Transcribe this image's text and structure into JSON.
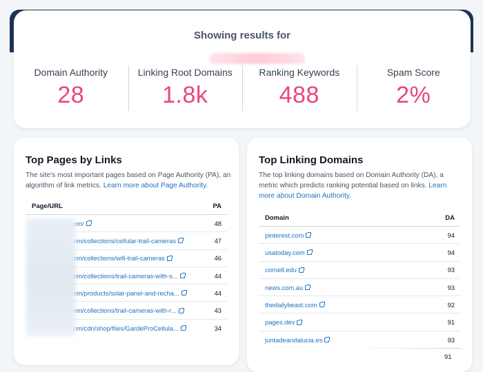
{
  "summary": {
    "title": "Showing results for",
    "metrics": [
      {
        "label": "Domain Authority",
        "value": "28"
      },
      {
        "label": "Linking Root Domains",
        "value": "1.8k"
      },
      {
        "label": "Ranking Keywords",
        "value": "488"
      },
      {
        "label": "Spam Score",
        "value": "2%"
      }
    ]
  },
  "top_pages": {
    "title": "Top Pages by Links",
    "description": "The site's most important pages based on Page Authority (PA), an algorithm of link metrics.",
    "learn_more": "Learn more about Page Authority.",
    "col_url": "Page/URL",
    "col_score": "PA",
    "rows": [
      {
        "url": "om/",
        "pa": "48"
      },
      {
        "url": "om/collections/cellular-trail-cameras",
        "pa": "47"
      },
      {
        "url": "om/collections/wifi-trail-cameras",
        "pa": "46"
      },
      {
        "url": "om/collections/trail-cameras-with-s...",
        "pa": "44"
      },
      {
        "url": "om/products/solar-panel-and-recha...",
        "pa": "44"
      },
      {
        "url": "om/collections/trail-cameras-with-r...",
        "pa": "43"
      },
      {
        "url": "om/cdn/shop/files/GardeProCellula...",
        "pa": "34"
      }
    ]
  },
  "top_domains": {
    "title": "Top Linking Domains",
    "description": "The top linking domains based on Domain Authority (DA), a metric which predicts ranking potential based on links.",
    "learn_more": "Learn more about Domain Authority.",
    "col_domain": "Domain",
    "col_score": "DA",
    "rows": [
      {
        "domain": "pinterest.com",
        "da": "94"
      },
      {
        "domain": "usatoday.com",
        "da": "94"
      },
      {
        "domain": "cornell.edu",
        "da": "93"
      },
      {
        "domain": "news.com.au",
        "da": "93"
      },
      {
        "domain": "thedailybeast.com",
        "da": "92"
      },
      {
        "domain": "pages.dev",
        "da": "91"
      },
      {
        "domain": "juntadeandalucia.es",
        "da": "93"
      }
    ],
    "overflow_value": "91"
  },
  "colors": {
    "accent_pink": "#e8477a",
    "link_blue": "#1f6fc0",
    "header_navy": "#1d3554"
  }
}
